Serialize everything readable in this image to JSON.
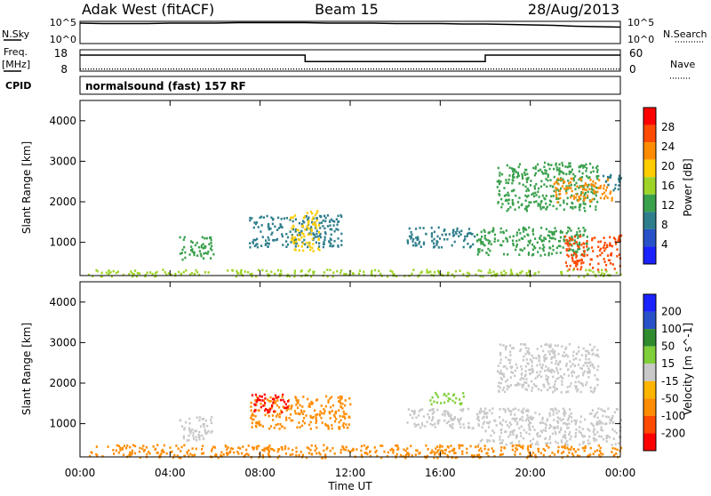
{
  "header": {
    "site": "Adak West (fitACF)",
    "beam": "Beam 15",
    "date": "28/Aug/2013"
  },
  "left_labels": {
    "nsky": "N.Sky",
    "nsky_ticks": [
      "10^5",
      "10^0"
    ],
    "freq_line1": "Freq.",
    "freq_line2": "[MHz]",
    "freq_ticks": [
      "18",
      "8"
    ],
    "cpid": "CPID"
  },
  "right_labels": {
    "nsearch": "N.Search",
    "nsearch_ticks": [
      "10^5",
      "10^0"
    ],
    "nave": "Nave",
    "nave_ticks": [
      "60",
      "0"
    ]
  },
  "cpid_text": "normalsound (fast) 157 RF",
  "colors": {
    "power_scale": [
      "#1a22ff",
      "#2a52c8",
      "#2e7e8c",
      "#3aa04c",
      "#9ed428",
      "#ffcc00",
      "#ff8c00",
      "#ff4a00",
      "#ff0000"
    ],
    "velocity_scale": [
      "#ff0000",
      "#ff4a00",
      "#ff8c00",
      "#ffb400",
      "#c8c8c8",
      "#7fcf3a",
      "#2e8b2e",
      "#2a52c8",
      "#1a22ff"
    ]
  },
  "chart_data": [
    {
      "type": "line",
      "title": "N.Sky / N.Search",
      "x_ticks": [
        "00:00",
        "04:00",
        "08:00",
        "12:00",
        "16:00",
        "20:00",
        "00:00"
      ],
      "ylim_log": [
        0,
        5
      ],
      "series": [
        {
          "name": "N.Sky",
          "style": "solid",
          "x_hours": [
            0.0,
            1,
            2,
            3,
            4,
            5,
            6,
            7,
            8,
            9,
            10,
            11,
            12,
            13,
            14,
            15,
            16,
            17,
            18,
            19,
            20,
            21,
            22,
            23,
            24
          ],
          "log_values": [
            4.6,
            4.5,
            4.5,
            4.5,
            4.6,
            4.6,
            4.6,
            4.7,
            4.7,
            4.7,
            4.7,
            4.6,
            4.6,
            4.6,
            4.5,
            4.5,
            4.5,
            4.4,
            4.4,
            4.3,
            4.2,
            4.1,
            3.9,
            3.8,
            3.7
          ]
        }
      ]
    },
    {
      "type": "line",
      "title": "Freq. / Nave",
      "y_left_ticks": [
        "18",
        "8"
      ],
      "y_right_ticks": [
        "60",
        "0"
      ],
      "series": [
        {
          "name": "Freq.",
          "style": "solid",
          "x_hours": [
            0,
            10,
            10,
            18,
            18,
            24
          ],
          "values": [
            15.5,
            15.5,
            12.5,
            12.5,
            15.5,
            15.5
          ]
        },
        {
          "name": "Nave",
          "style": "dotted",
          "x_hours": [
            0,
            24
          ],
          "values": [
            9,
            9
          ]
        }
      ]
    },
    {
      "type": "heatmap",
      "quantity": "Power",
      "ylabel": "Slant Range [km]",
      "y_ticks": [
        "1000",
        "2000",
        "3000",
        "4000"
      ],
      "ylim": [
        180,
        4500
      ],
      "x_ticks": [
        "00:00",
        "04:00",
        "08:00",
        "12:00",
        "16:00",
        "20:00",
        "00:00"
      ],
      "colorbar_label": "Power [dB]",
      "colorbar_ticks": [
        "28",
        "24",
        "20",
        "16",
        "12",
        "8",
        "4"
      ],
      "colorbar_range": [
        0,
        32
      ],
      "regions": [
        {
          "t0": 4.4,
          "t1": 5.9,
          "r0": 600,
          "r1": 1200,
          "level": 14
        },
        {
          "t0": 7.5,
          "t1": 11.6,
          "r0": 900,
          "r1": 1700,
          "level": 10
        },
        {
          "t0": 9.3,
          "t1": 10.6,
          "r0": 800,
          "r1": 1800,
          "level": 18
        },
        {
          "t0": 14.5,
          "t1": 17.5,
          "r0": 900,
          "r1": 1400,
          "level": 8
        },
        {
          "t0": 17.6,
          "t1": 22.6,
          "r0": 700,
          "r1": 1400,
          "level": 12
        },
        {
          "t0": 21.5,
          "t1": 24,
          "r0": 350,
          "r1": 1200,
          "level": 26
        },
        {
          "t0": 18.5,
          "t1": 23.0,
          "r0": 1800,
          "r1": 3000,
          "level": 12
        },
        {
          "t0": 21.0,
          "t1": 23.6,
          "r0": 2000,
          "r1": 2600,
          "level": 22
        },
        {
          "t0": 23.2,
          "t1": 24,
          "r0": 2300,
          "r1": 2700,
          "level": 8
        },
        {
          "t0": 0.3,
          "t1": 24,
          "r0": 180,
          "r1": 350,
          "level": 16
        }
      ]
    },
    {
      "type": "heatmap",
      "quantity": "Velocity",
      "ylabel": "Slant Range [km]",
      "xlabel": "Time UT",
      "y_ticks": [
        "1000",
        "2000",
        "3000",
        "4000"
      ],
      "ylim": [
        180,
        4500
      ],
      "x_ticks": [
        "00:00",
        "04:00",
        "08:00",
        "12:00",
        "16:00",
        "20:00",
        "00:00"
      ],
      "colorbar_label": "Velocity [m s^-1]",
      "colorbar_ticks": [
        "200",
        "100",
        "50",
        "15",
        "-15",
        "-50",
        "-100",
        "-200"
      ],
      "regions": [
        {
          "t0": 4.4,
          "t1": 5.9,
          "r0": 600,
          "r1": 1200,
          "value": 0
        },
        {
          "t0": 7.5,
          "t1": 12.0,
          "r0": 900,
          "r1": 1700,
          "value": -80
        },
        {
          "t0": 7.6,
          "t1": 9.2,
          "r0": 1300,
          "r1": 1750,
          "value": -180
        },
        {
          "t0": 14.5,
          "t1": 17.5,
          "r0": 900,
          "r1": 1400,
          "value": 0
        },
        {
          "t0": 15.5,
          "t1": 17.0,
          "r0": 1500,
          "r1": 1800,
          "value": 30
        },
        {
          "t0": 17.6,
          "t1": 24,
          "r0": 500,
          "r1": 1400,
          "value": 0
        },
        {
          "t0": 18.5,
          "t1": 23.0,
          "r0": 1800,
          "r1": 3000,
          "value": 0
        },
        {
          "t0": 0.3,
          "t1": 24,
          "r0": 180,
          "r1": 500,
          "value": -60
        }
      ]
    }
  ]
}
